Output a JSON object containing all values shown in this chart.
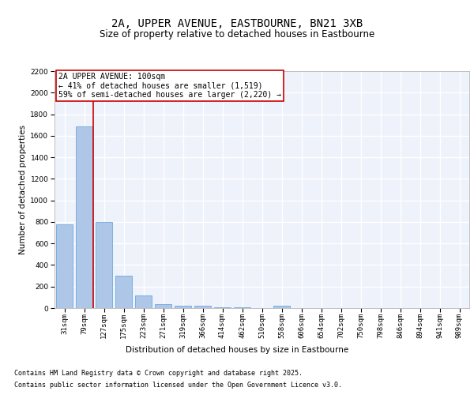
{
  "title_line1": "2A, UPPER AVENUE, EASTBOURNE, BN21 3XB",
  "title_line2": "Size of property relative to detached houses in Eastbourne",
  "xlabel": "Distribution of detached houses by size in Eastbourne",
  "ylabel": "Number of detached properties",
  "categories": [
    "31sqm",
    "79sqm",
    "127sqm",
    "175sqm",
    "223sqm",
    "271sqm",
    "319sqm",
    "366sqm",
    "414sqm",
    "462sqm",
    "510sqm",
    "558sqm",
    "606sqm",
    "654sqm",
    "702sqm",
    "750sqm",
    "798sqm",
    "846sqm",
    "894sqm",
    "941sqm",
    "989sqm"
  ],
  "values": [
    775,
    1690,
    800,
    300,
    115,
    35,
    25,
    20,
    10,
    5,
    0,
    20,
    0,
    0,
    0,
    0,
    0,
    0,
    0,
    0,
    0
  ],
  "bar_color": "#aec6e8",
  "bar_edge_color": "#5a9fd4",
  "vline_x_index": 1.45,
  "vline_color": "#cc0000",
  "annotation_text": "2A UPPER AVENUE: 100sqm\n← 41% of detached houses are smaller (1,519)\n59% of semi-detached houses are larger (2,220) →",
  "annotation_box_color": "#cc0000",
  "ylim": [
    0,
    2200
  ],
  "yticks": [
    0,
    200,
    400,
    600,
    800,
    1000,
    1200,
    1400,
    1600,
    1800,
    2000,
    2200
  ],
  "background_color": "#eef2fb",
  "grid_color": "#ffffff",
  "footer_line1": "Contains HM Land Registry data © Crown copyright and database right 2025.",
  "footer_line2": "Contains public sector information licensed under the Open Government Licence v3.0.",
  "title_fontsize": 10,
  "subtitle_fontsize": 8.5,
  "axis_label_fontsize": 7.5,
  "tick_fontsize": 6.5,
  "annotation_fontsize": 7,
  "footer_fontsize": 6
}
